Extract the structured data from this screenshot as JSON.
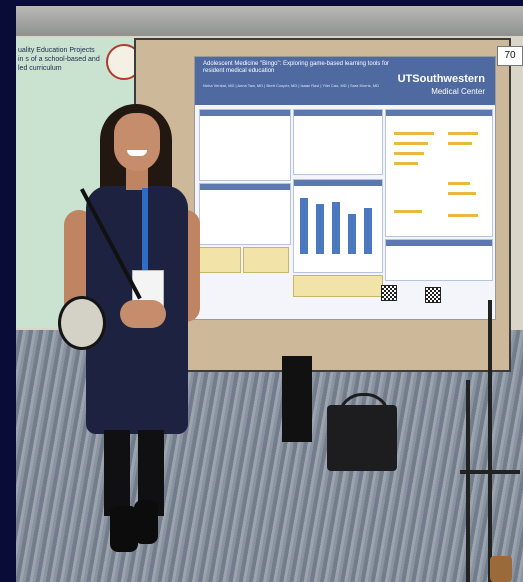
{
  "poster": {
    "title": "Adolescent Medicine \"Bingo\": Exploring game-based learning tools for resident medical education",
    "authors": "Neha Venkat, MD | Anna Taw, MD | Brett Cooper, MD | Isaac Ravi | Yilei Cao, MD | Sara Morris, MD",
    "logo_line1": "UTSouthwestern",
    "logo_line2": "Medical Center"
  },
  "left_poster": {
    "title": "uality Education Projects in s of a school-based and led curriculum"
  },
  "board_number": "70",
  "colors": {
    "frame": "#0a0c38",
    "board": "#cdb89a",
    "poster_header": "#4e6aa0",
    "dress": "#1c2240"
  }
}
